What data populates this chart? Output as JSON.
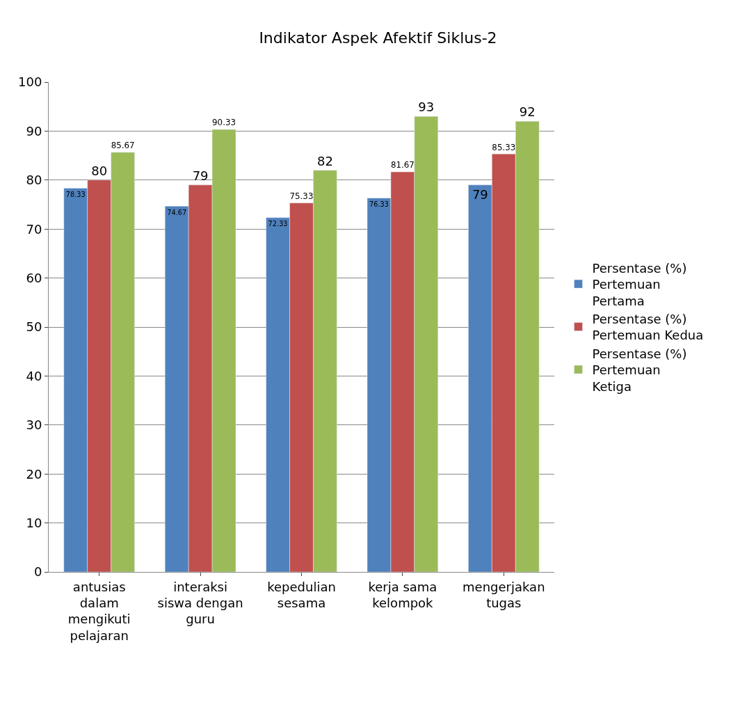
{
  "chart_data": {
    "type": "bar",
    "title": "Indikator Aspek Afektif Siklus-2",
    "categories": [
      "antusias dalam mengikuti pelajaran",
      "interaksi siswa dengan guru",
      "kepedulian sesama",
      "kerja sama kelompok",
      "mengerjakan tugas"
    ],
    "series": [
      {
        "name": "Persentase (%) Pertemuan Pertama",
        "color": "#4f81bd",
        "values": [
          78.33,
          74.67,
          72.33,
          76.33,
          79
        ]
      },
      {
        "name": "Persentase (%) Pertemuan Kedua",
        "color": "#c0504d",
        "values": [
          80,
          79,
          75.33,
          81.67,
          85.33
        ]
      },
      {
        "name": "Persentase (%) Pertemuan Ketiga",
        "color": "#9bbb59",
        "values": [
          85.67,
          90.33,
          82,
          93,
          92
        ]
      }
    ],
    "ylim": [
      0,
      100
    ],
    "yticks": [
      0,
      10,
      20,
      30,
      40,
      50,
      60,
      70,
      80,
      90,
      100
    ],
    "grid": "y",
    "legend": "right",
    "data_labels": true
  }
}
